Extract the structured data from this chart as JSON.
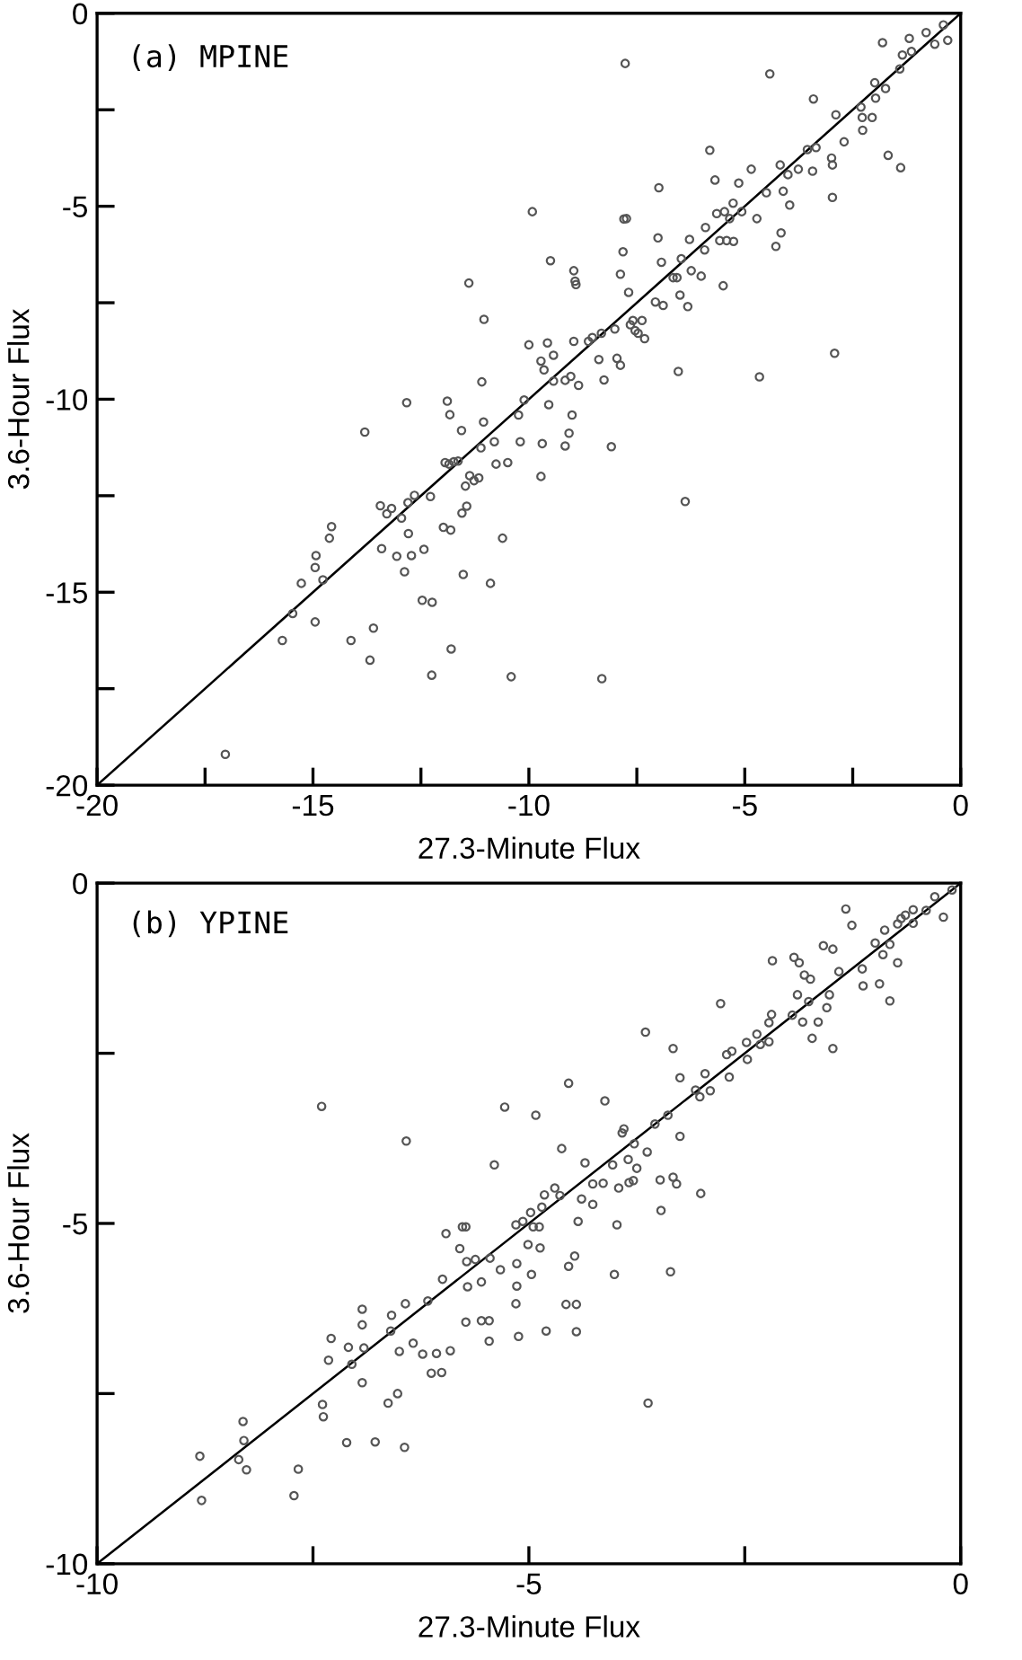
{
  "chart_data": [
    {
      "type": "scatter",
      "title": "(a) MPINE",
      "xlabel": "27.3-Minute Flux",
      "ylabel": "3.6-Hour Flux",
      "grid": false,
      "legend": false,
      "xlim": [
        -20,
        0
      ],
      "ylim": [
        -20,
        0
      ],
      "xticks": [
        -20,
        {
          "value": -17.5,
          "label": null
        },
        -15,
        {
          "value": -12.5,
          "label": null
        },
        -10,
        {
          "value": -7.5,
          "label": null
        },
        -5,
        {
          "value": -2.5,
          "label": null
        },
        0
      ],
      "yticks": [
        -20,
        {
          "value": -17.5,
          "label": null
        },
        -15,
        {
          "value": -12.5,
          "label": null
        },
        -10,
        {
          "value": -7.5,
          "label": null
        },
        -5,
        {
          "value": -2.5,
          "label": null
        },
        0
      ],
      "series": [
        {
          "color": "#555555",
          "marker": "circle",
          "x": [
            -17.03,
            -15.71,
            -15.47,
            -15.27,
            -14.95,
            -14.95,
            -14.93,
            -14.77,
            -14.62,
            -14.57,
            -14.12,
            -13.8,
            -13.68,
            -13.6,
            -13.44,
            -13.41,
            -13.29,
            -13.18,
            -13.06,
            -12.95,
            -12.88,
            -12.83,
            -12.8,
            -12.79,
            -12.72,
            -12.65,
            -12.47,
            -12.43,
            -12.28,
            -12.25,
            -12.24,
            -11.98,
            -11.94,
            -11.89,
            -11.85,
            -11.83,
            -11.81,
            -11.8,
            -11.74,
            -11.64,
            -11.56,
            -11.55,
            -11.52,
            -11.47,
            -11.44,
            -11.39,
            -11.37,
            -11.27,
            -11.16,
            -11.11,
            -11.04,
            -10.89,
            -11.09,
            -11.05,
            -10.8,
            -10.61,
            -10.41,
            -10.76,
            -10.49,
            -10.2,
            -10.24,
            -10.11,
            -10.0,
            -9.92,
            -9.72,
            -9.69,
            -9.72,
            -9.65,
            -9.57,
            -9.54,
            -9.5,
            -9.43,
            -9.43,
            -9.16,
            -9.16,
            -9.07,
            -9.03,
            -9.0,
            -8.96,
            -8.93,
            -8.91,
            -8.96,
            -8.85,
            -8.62,
            -8.53,
            -8.38,
            -8.32,
            -8.26,
            -8.09,
            -8.01,
            -7.96,
            -7.88,
            -7.88,
            -7.82,
            -7.8,
            -7.74,
            -7.77,
            -8.31,
            -7.69,
            -7.65,
            -7.59,
            -7.54,
            -7.47,
            -7.38,
            -7.32,
            -7.07,
            -7.01,
            -6.99,
            -6.93,
            -6.89,
            -6.66,
            -6.57,
            -6.54,
            -6.5,
            -6.47,
            -6.38,
            -6.32,
            -6.28,
            -6.24,
            -6.01,
            -5.93,
            -5.91,
            -5.81,
            -5.69,
            -5.65,
            -5.58,
            -5.5,
            -5.47,
            -5.42,
            -5.35,
            -5.27,
            -5.26,
            -5.14,
            -5.07,
            -4.85,
            -4.72,
            -4.66,
            -4.5,
            -4.42,
            -4.28,
            -4.18,
            -4.16,
            -4.11,
            -4.0,
            -3.96,
            -3.76,
            -3.55,
            -3.43,
            -3.41,
            -3.35,
            -2.99,
            -2.97,
            -2.97,
            -2.92,
            -2.89,
            -2.7,
            -2.31,
            -2.28,
            -2.27,
            -2.05,
            -1.99,
            -1.97,
            -1.81,
            -1.74,
            -1.68,
            -1.41,
            -1.39,
            -1.35,
            -1.19,
            -1.14,
            -0.8,
            -0.6,
            -0.4,
            -0.3
          ],
          "values": [
            -19.2,
            -16.25,
            -15.55,
            -14.77,
            -15.77,
            -14.36,
            -14.05,
            -14.68,
            -13.6,
            -13.3,
            -16.25,
            -10.85,
            -16.76,
            -15.93,
            -12.76,
            -13.87,
            -12.97,
            -12.83,
            -14.07,
            -13.08,
            -14.47,
            -10.09,
            -12.68,
            -13.48,
            -14.05,
            -12.49,
            -15.21,
            -13.89,
            -12.52,
            -17.15,
            -15.26,
            -13.32,
            -11.64,
            -10.05,
            -11.68,
            -10.4,
            -13.39,
            -16.47,
            -11.62,
            -11.6,
            -10.81,
            -12.95,
            -14.54,
            -12.25,
            -12.77,
            -6.99,
            -11.98,
            -12.11,
            -12.04,
            -11.26,
            -7.93,
            -14.77,
            -9.55,
            -10.59,
            -11.1,
            -13.6,
            -17.19,
            -11.68,
            -11.64,
            -11.1,
            -10.41,
            -10.02,
            -8.59,
            -5.14,
            -12.0,
            -11.15,
            -9.01,
            -9.24,
            -8.54,
            -10.14,
            -6.41,
            -8.86,
            -9.53,
            -9.51,
            -11.21,
            -10.88,
            -9.41,
            -10.41,
            -6.67,
            -6.94,
            -7.03,
            -8.5,
            -9.64,
            -8.5,
            -8.4,
            -8.97,
            -8.29,
            -9.5,
            -11.23,
            -8.18,
            -8.94,
            -9.12,
            -6.76,
            -6.18,
            -5.33,
            -5.32,
            -1.3,
            -17.24,
            -7.23,
            -8.07,
            -7.96,
            -8.22,
            -8.29,
            -7.96,
            -8.43,
            -7.48,
            -5.82,
            -4.52,
            -6.45,
            -7.57,
            -6.85,
            -6.85,
            -9.28,
            -7.3,
            -6.36,
            -12.65,
            -7.6,
            -5.86,
            -6.67,
            -6.81,
            -6.13,
            -5.55,
            -3.55,
            -4.32,
            -5.19,
            -5.89,
            -7.06,
            -5.14,
            -5.89,
            -5.32,
            -4.92,
            -5.91,
            -4.4,
            -5.14,
            -4.04,
            -5.32,
            -9.42,
            -4.65,
            -1.57,
            -6.04,
            -3.93,
            -5.69,
            -4.61,
            -4.18,
            -4.97,
            -4.04,
            -3.53,
            -4.09,
            -2.22,
            -3.48,
            -3.75,
            -4.77,
            -3.93,
            -8.81,
            -2.63,
            -3.33,
            -2.43,
            -2.7,
            -3.03,
            -2.7,
            -1.8,
            -2.2,
            -0.76,
            -1.95,
            -3.68,
            -1.44,
            -4.0,
            -1.08,
            -0.65,
            -0.99,
            -0.5,
            -0.8,
            -0.3,
            -0.7
          ]
        },
        {
          "type": "line",
          "color": "#000000",
          "x": [
            -20,
            0
          ],
          "values": [
            -20,
            0
          ]
        }
      ]
    },
    {
      "type": "scatter",
      "title": "(b) YPINE",
      "xlabel": "27.3-Minute Flux",
      "ylabel": "3.6-Hour Flux",
      "grid": false,
      "legend": false,
      "xlim": [
        -10,
        0
      ],
      "ylim": [
        -10,
        0
      ],
      "xticks": [
        -10,
        {
          "value": -7.5,
          "label": null
        },
        -5,
        {
          "value": -2.5,
          "label": null
        },
        0
      ],
      "yticks": [
        -10,
        {
          "value": -7.5,
          "label": null
        },
        -5,
        {
          "value": -2.5,
          "label": null
        },
        0
      ],
      "series": [
        {
          "color": "#555555",
          "marker": "circle",
          "x": [
            -8.81,
            -8.79,
            -8.36,
            -8.31,
            -8.3,
            -8.27,
            -7.72,
            -7.67,
            -7.4,
            -7.39,
            -7.38,
            -7.32,
            -7.29,
            -7.11,
            -7.09,
            -7.05,
            -6.93,
            -6.93,
            -6.93,
            -6.91,
            -6.78,
            -6.63,
            -6.6,
            -6.59,
            -6.52,
            -6.5,
            -6.43,
            -6.44,
            -6.42,
            -6.34,
            -6.23,
            -6.17,
            -6.13,
            -6.07,
            -6.01,
            -6.0,
            -5.96,
            -5.91,
            -5.8,
            -5.77,
            -5.73,
            -5.73,
            -5.72,
            -5.71,
            -5.62,
            -5.55,
            -5.55,
            -5.46,
            -5.46,
            -5.45,
            -5.4,
            -5.33,
            -5.28,
            -5.15,
            -5.14,
            -5.14,
            -5.15,
            -5.12,
            -5.07,
            -5.01,
            -4.98,
            -4.97,
            -4.95,
            -4.92,
            -4.88,
            -4.87,
            -4.85,
            -4.82,
            -4.8,
            -4.7,
            -4.64,
            -4.62,
            -4.57,
            -4.54,
            -4.54,
            -4.47,
            -4.45,
            -4.45,
            -4.43,
            -4.39,
            -4.35,
            -4.26,
            -4.26,
            -4.14,
            -4.12,
            -4.03,
            -4.01,
            -3.98,
            -3.96,
            -3.92,
            -3.9,
            -3.85,
            -3.84,
            -3.79,
            -3.78,
            -3.75,
            -3.65,
            -3.63,
            -3.62,
            -3.54,
            -3.48,
            -3.47,
            -3.39,
            -3.36,
            -3.33,
            -3.33,
            -3.29,
            -3.25,
            -3.25,
            -3.07,
            -3.02,
            -3.01,
            -2.96,
            -2.9,
            -2.78,
            -2.71,
            -2.68,
            -2.65,
            -2.47,
            -2.48,
            -2.36,
            -2.32,
            -2.22,
            -2.22,
            -2.19,
            -2.18,
            -1.95,
            -1.93,
            -1.89,
            -1.87,
            -1.83,
            -1.81,
            -1.76,
            -1.74,
            -1.72,
            -1.65,
            -1.59,
            -1.55,
            -1.52,
            -1.48,
            -1.48,
            -1.41,
            -1.33,
            -1.26,
            -1.14,
            -1.13,
            -0.99,
            -0.94,
            -0.9,
            -0.88,
            -0.82,
            -0.82,
            -0.73,
            -0.73,
            -0.69,
            -0.64,
            -0.55,
            -0.55,
            -0.4,
            -0.3,
            -0.2,
            -0.1
          ],
          "values": [
            -8.42,
            -9.07,
            -8.47,
            -7.91,
            -8.19,
            -8.62,
            -9.0,
            -8.61,
            -3.28,
            -7.66,
            -7.84,
            -7.01,
            -6.69,
            -8.22,
            -6.82,
            -7.07,
            -6.26,
            -6.49,
            -7.34,
            -6.83,
            -8.21,
            -7.64,
            -6.58,
            -6.35,
            -7.5,
            -6.88,
            -6.18,
            -8.29,
            -3.79,
            -6.76,
            -6.92,
            -6.14,
            -7.2,
            -6.91,
            -7.19,
            -5.82,
            -5.15,
            -6.87,
            -5.37,
            -5.05,
            -5.05,
            -6.45,
            -5.56,
            -5.93,
            -5.53,
            -5.86,
            -6.43,
            -6.43,
            -6.73,
            -5.51,
            -4.14,
            -5.68,
            -3.29,
            -5.02,
            -5.59,
            -5.92,
            -6.18,
            -6.66,
            -4.97,
            -5.31,
            -4.84,
            -5.75,
            -5.05,
            -3.41,
            -5.05,
            -5.36,
            -4.76,
            -4.58,
            -6.58,
            -4.48,
            -4.59,
            -3.9,
            -6.19,
            -2.94,
            -5.63,
            -5.48,
            -6.19,
            -6.59,
            -4.97,
            -4.64,
            -4.11,
            -4.42,
            -4.72,
            -4.41,
            -3.2,
            -4.14,
            -5.75,
            -5.02,
            -4.48,
            -3.67,
            -3.61,
            -4.06,
            -4.4,
            -4.37,
            -3.83,
            -4.19,
            -2.19,
            -3.95,
            -7.64,
            -3.54,
            -4.36,
            -4.81,
            -3.41,
            -5.71,
            -2.43,
            -4.32,
            -4.42,
            -2.86,
            -3.72,
            -3.04,
            -3.14,
            -4.56,
            -2.8,
            -3.05,
            -1.77,
            -2.52,
            -2.85,
            -2.47,
            -2.59,
            -2.34,
            -2.22,
            -2.37,
            -2.05,
            -2.33,
            -1.93,
            -1.14,
            -1.94,
            -1.09,
            -1.64,
            -1.17,
            -2.04,
            -1.35,
            -1.74,
            -1.41,
            -2.28,
            -2.04,
            -0.92,
            -1.83,
            -1.64,
            -0.97,
            -2.43,
            -1.3,
            -0.38,
            -0.62,
            -1.26,
            -1.51,
            -0.88,
            -1.48,
            -1.05,
            -0.69,
            -1.73,
            -0.9,
            -1.17,
            -0.6,
            -0.52,
            -0.47,
            -0.39,
            -0.59,
            -0.4,
            -0.2,
            -0.5,
            -0.1
          ]
        },
        {
          "type": "line",
          "color": "#000000",
          "x": [
            -10,
            0
          ],
          "values": [
            -10,
            0
          ]
        }
      ]
    }
  ]
}
